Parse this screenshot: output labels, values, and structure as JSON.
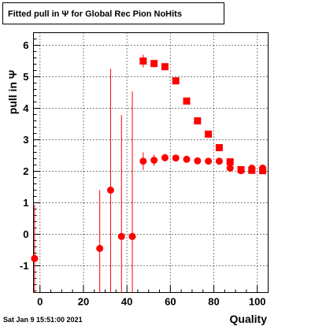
{
  "date_stamp": "Sat Jan  9 15:51:00 2021",
  "chart_data": {
    "type": "scatter",
    "title": "Fitted pull in Ψ  for Global Rec Pion NoHits",
    "xlabel": "Quality",
    "ylabel": "pull in Ψ",
    "xlim": [
      -3,
      105
    ],
    "ylim": [
      -1.85,
      6.4
    ],
    "xticks": [
      0,
      20,
      40,
      60,
      80,
      100
    ],
    "yticks": [
      -1,
      0,
      1,
      2,
      3,
      4,
      5,
      6
    ],
    "grid": true,
    "colors": {
      "marker": "#ff0000",
      "frame": "#000000",
      "grid": "#000000"
    },
    "series": [
      {
        "marker": "square",
        "points": [
          {
            "x": 47.5,
            "y": 5.5,
            "err": 0.2
          },
          {
            "x": 52.5,
            "y": 5.42,
            "err": 0.12
          },
          {
            "x": 57.5,
            "y": 5.32,
            "err": 0.1
          },
          {
            "x": 62.5,
            "y": 4.87,
            "err": 0.08
          },
          {
            "x": 67.5,
            "y": 4.23,
            "err": 0.08
          },
          {
            "x": 72.5,
            "y": 3.6,
            "err": 0.08
          },
          {
            "x": 77.5,
            "y": 3.18,
            "err": 0.08
          },
          {
            "x": 82.5,
            "y": 2.75,
            "err": 0.07
          },
          {
            "x": 87.5,
            "y": 2.3,
            "err": 0.06
          },
          {
            "x": 92.5,
            "y": 2.05,
            "err": 0.05
          },
          {
            "x": 97.5,
            "y": 2.03,
            "err": 0.05
          },
          {
            "x": 102.5,
            "y": 2.02,
            "err": 0.05
          }
        ]
      },
      {
        "marker": "circle",
        "points": [
          {
            "x": -2.5,
            "y": -0.77,
            "err": 1.7
          },
          {
            "x": 27.5,
            "y": -0.45,
            "err": 1.85
          },
          {
            "x": 32.5,
            "y": 1.4,
            "err": 3.85
          },
          {
            "x": 37.5,
            "y": -0.07,
            "err": 3.85
          },
          {
            "x": 42.5,
            "y": -0.07,
            "err": 4.6
          },
          {
            "x": 47.5,
            "y": 2.32,
            "err": 0.28
          },
          {
            "x": 52.5,
            "y": 2.35,
            "err": 0.18
          },
          {
            "x": 57.5,
            "y": 2.43,
            "err": 0.12
          },
          {
            "x": 62.5,
            "y": 2.42,
            "err": 0.08
          },
          {
            "x": 67.5,
            "y": 2.38,
            "err": 0.07
          },
          {
            "x": 72.5,
            "y": 2.33,
            "err": 0.07
          },
          {
            "x": 77.5,
            "y": 2.32,
            "err": 0.07
          },
          {
            "x": 82.5,
            "y": 2.32,
            "err": 0.06
          },
          {
            "x": 87.5,
            "y": 2.1,
            "err": 0.06
          },
          {
            "x": 92.5,
            "y": 2.02,
            "err": 0.05
          },
          {
            "x": 97.5,
            "y": 2.1,
            "err": 0.05
          },
          {
            "x": 102.5,
            "y": 2.1,
            "err": 0.05
          }
        ]
      }
    ]
  }
}
